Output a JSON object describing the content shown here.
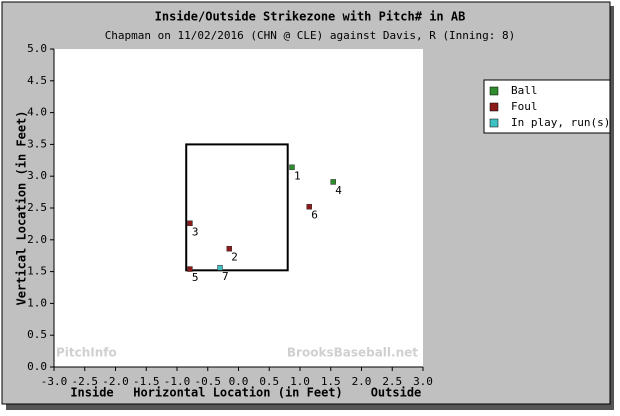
{
  "chart_data": {
    "type": "scatter",
    "title": "Inside/Outside Strikezone with Pitch# in AB",
    "subtitle": "Chapman on 11/02/2016 (CHN @ CLE) against Davis, R (Inning: 8)",
    "x_label": "Horizontal Location (in Feet)",
    "y_label": "Vertical Location (in Feet)",
    "annotations": [
      "Inside",
      "Outside",
      "PitchInfo",
      "BrooksBaseball.net"
    ],
    "xlim": [
      -3,
      3
    ],
    "ylim": [
      0,
      5
    ],
    "xticks": [
      {
        "value": -3,
        "label": "-3.0"
      },
      {
        "value": -2.5,
        "label": "-2.5"
      },
      {
        "value": -2,
        "label": "-2.0"
      },
      {
        "value": -1.5,
        "label": "-1.5"
      },
      {
        "value": -1,
        "label": "-1.0"
      },
      {
        "value": -0.5,
        "label": "-0.5"
      },
      {
        "value": 0,
        "label": "0.0"
      },
      {
        "value": 0.5,
        "label": "0.5"
      },
      {
        "value": 1,
        "label": "1.0"
      },
      {
        "value": 1.5,
        "label": "1.5"
      },
      {
        "value": 2,
        "label": "2.0"
      },
      {
        "value": 2.5,
        "label": "2.5"
      },
      {
        "value": 3,
        "label": "3.0"
      }
    ],
    "yticks": [
      {
        "value": 0,
        "label": "0.0"
      },
      {
        "value": 0.5,
        "label": "0.5"
      },
      {
        "value": 1,
        "label": "1.0"
      },
      {
        "value": 1.5,
        "label": "1.5"
      },
      {
        "value": 2,
        "label": "2.0"
      },
      {
        "value": 2.5,
        "label": "2.5"
      },
      {
        "value": 3,
        "label": "3.0"
      },
      {
        "value": 3.5,
        "label": "3.5"
      },
      {
        "value": 4,
        "label": "4.0"
      },
      {
        "value": 4.5,
        "label": "4.5"
      },
      {
        "value": 5,
        "label": "5.0"
      }
    ],
    "strike_zone": {
      "x": [
        -0.85,
        0.8
      ],
      "y": [
        1.52,
        3.5
      ]
    },
    "legend": "right",
    "series": [
      {
        "name": "Ball",
        "color": "#2e8b2e",
        "x": [
          0.87,
          1.54
        ],
        "values": [
          3.14,
          2.91
        ],
        "labels": [
          "1",
          "4"
        ]
      },
      {
        "name": "Foul",
        "color": "#8b1a1a",
        "x": [
          -0.15,
          -0.79,
          -0.79,
          1.15
        ],
        "values": [
          1.86,
          2.26,
          1.54,
          2.52
        ],
        "labels": [
          "2",
          "3",
          "5",
          "6"
        ]
      },
      {
        "name": "In play, run(s)",
        "color": "#40c0c0",
        "x": [
          -0.3
        ],
        "values": [
          1.56
        ],
        "labels": [
          "7"
        ]
      }
    ]
  }
}
